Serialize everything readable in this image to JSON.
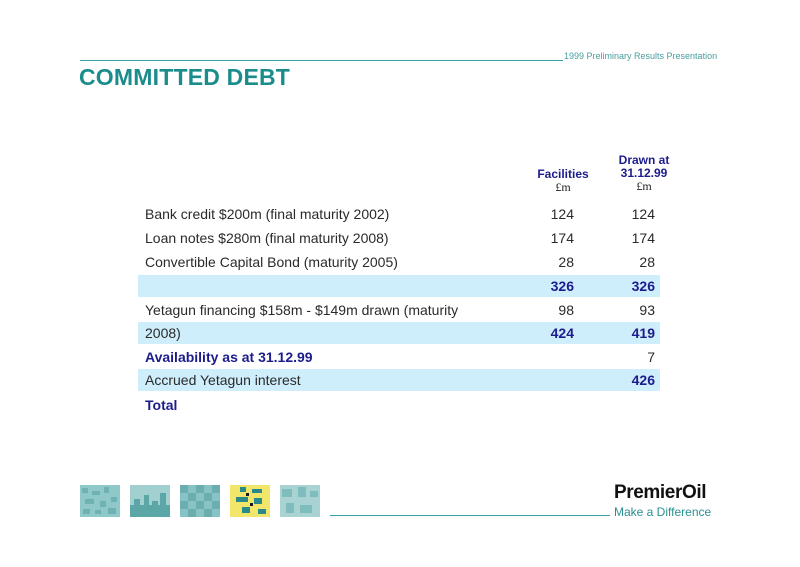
{
  "header": {
    "caption": "1999 Preliminary Results Presentation",
    "title": "COMMITTED DEBT"
  },
  "columns": {
    "facilities": {
      "label": "Facilities",
      "unit": "£m"
    },
    "drawn": {
      "label_line1": "Drawn at",
      "label_line2": "31.12.99",
      "unit": "£m"
    }
  },
  "rows": [
    {
      "label": "Bank credit $200m (final maturity 2002)",
      "facilities": "124",
      "drawn": "124"
    },
    {
      "label": "Loan notes $280m (final maturity 2008)",
      "facilities": "174",
      "drawn": "174"
    },
    {
      "label": "Convertible Capital Bond (maturity 2005)",
      "facilities": "28",
      "drawn": "28"
    },
    {
      "label": "",
      "facilities": "326",
      "drawn": "326"
    },
    {
      "label": "Yetagun financing $158m - $149m drawn (maturity",
      "facilities": "98",
      "drawn": "93"
    },
    {
      "label": "2008)",
      "facilities": "424",
      "drawn": "419"
    },
    {
      "label": "Availability as at 31.12.99",
      "facilities": "",
      "drawn": "7"
    },
    {
      "label": "Accrued Yetagun interest",
      "facilities": "",
      "drawn": "426"
    },
    {
      "label": "Total",
      "facilities": "",
      "drawn": ""
    }
  ],
  "footer": {
    "brand": "PremierOil",
    "tagline": "Make a Difference"
  },
  "colors": {
    "teal": "#1a8c8c",
    "navy": "#1c1c8c",
    "highlight": "#cfeefb"
  }
}
